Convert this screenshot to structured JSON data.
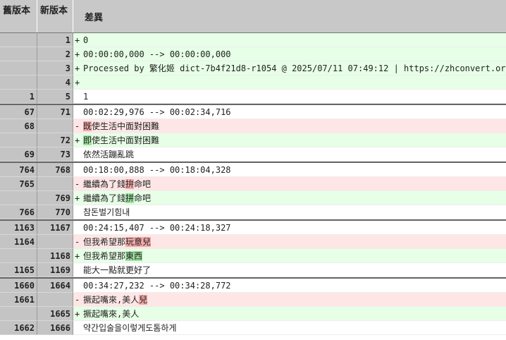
{
  "header": {
    "old": "舊版本",
    "new": "新版本",
    "diff": "差異"
  },
  "groups": [
    {
      "rows": [
        {
          "new": "1",
          "sign": "+",
          "parts": [
            {
              "text": "0"
            }
          ]
        },
        {
          "new": "2",
          "sign": "+",
          "parts": [
            {
              "text": "00:00:00,000 --> 00:00:00,000"
            }
          ]
        },
        {
          "new": "3",
          "sign": "+",
          "parts": [
            {
              "text": "Processed by 繁化姬 dict-7b4f21d8-r1054 @ 2025/07/11 07:49:12 | https://zhconvert.org"
            }
          ]
        },
        {
          "new": "4",
          "sign": "+"
        },
        {
          "old": "1",
          "new": "5",
          "parts": [
            {
              "text": "1"
            }
          ]
        }
      ]
    },
    {
      "rows": [
        {
          "old": "67",
          "new": "71",
          "parts": [
            {
              "text": "00:02:29,976 --> 00:02:34,716"
            }
          ]
        },
        {
          "old": "68",
          "sign": "-",
          "parts": [
            {
              "text": "既",
              "mark": "del"
            },
            {
              "text": "使生活中面對困難"
            }
          ]
        },
        {
          "new": "72",
          "sign": "+",
          "parts": [
            {
              "text": "即",
              "mark": "add"
            },
            {
              "text": "使生活中面對困難"
            }
          ]
        },
        {
          "old": "69",
          "new": "73",
          "parts": [
            {
              "text": "依然活蹦亂跳"
            }
          ]
        }
      ]
    },
    {
      "rows": [
        {
          "old": "764",
          "new": "768",
          "parts": [
            {
              "text": "00:18:00,888 --> 00:18:04,328"
            }
          ]
        },
        {
          "old": "765",
          "sign": "-",
          "parts": [
            {
              "text": "繼續為了錢"
            },
            {
              "text": "拚",
              "mark": "del"
            },
            {
              "text": "命吧"
            }
          ]
        },
        {
          "new": "769",
          "sign": "+",
          "parts": [
            {
              "text": "繼續為了錢"
            },
            {
              "text": "拼",
              "mark": "add"
            },
            {
              "text": "命吧"
            }
          ]
        },
        {
          "old": "766",
          "new": "770",
          "parts": [
            {
              "text": "참돈벌기힘내"
            }
          ]
        }
      ]
    },
    {
      "rows": [
        {
          "old": "1163",
          "new": "1167",
          "parts": [
            {
              "text": "00:24:15,407 --> 00:24:18,327"
            }
          ]
        },
        {
          "old": "1164",
          "sign": "-",
          "parts": [
            {
              "text": "但我希望那"
            },
            {
              "text": "玩意兒",
              "mark": "del"
            }
          ]
        },
        {
          "new": "1168",
          "sign": "+",
          "parts": [
            {
              "text": "但我希望那"
            },
            {
              "text": "東西",
              "mark": "add"
            }
          ]
        },
        {
          "old": "1165",
          "new": "1169",
          "parts": [
            {
              "text": "能大一點就更好了"
            }
          ]
        }
      ]
    },
    {
      "rows": [
        {
          "old": "1660",
          "new": "1664",
          "parts": [
            {
              "text": "00:34:27,232 --> 00:34:28,772"
            }
          ]
        },
        {
          "old": "1661",
          "sign": "-",
          "parts": [
            {
              "text": "撅起嘴來,美人"
            },
            {
              "text": "兒",
              "mark": "del"
            }
          ]
        },
        {
          "new": "1665",
          "sign": "+",
          "parts": [
            {
              "text": "撅起嘴來,美人"
            }
          ]
        },
        {
          "old": "1662",
          "new": "1666",
          "parts": [
            {
              "text": "약간입술을이렇게도톰하게"
            }
          ]
        }
      ]
    }
  ]
}
